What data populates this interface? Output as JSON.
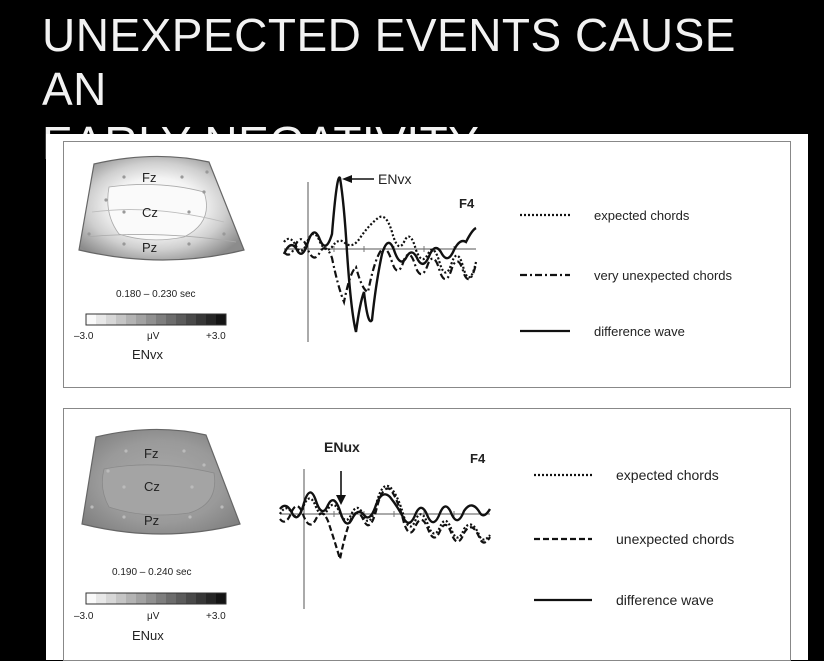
{
  "slide": {
    "title_line1": "UNEXPECTED EVENTS CAUSE AN",
    "title_line2": "EARLY NEGATIVITY…"
  },
  "panels": [
    {
      "component": "ENvx",
      "channel": "F4",
      "electrodes": [
        "Fz",
        "Cz",
        "Pz"
      ],
      "time_window": "0.180 – 0.230 sec",
      "scale_min": "–3.0",
      "scale_unit": "μV",
      "scale_max": "+3.0",
      "peak_label": "ENvx",
      "legend": [
        {
          "label": "expected chords",
          "style": "dotted"
        },
        {
          "label": "very unexpected chords",
          "style": "dashdot"
        },
        {
          "label": "difference wave",
          "style": "solid"
        }
      ]
    },
    {
      "component": "ENux",
      "channel": "F4",
      "electrodes": [
        "Fz",
        "Cz",
        "Pz"
      ],
      "time_window": "0.190 – 0.240 sec",
      "scale_min": "–3.0",
      "scale_unit": "μV",
      "scale_max": "+3.0",
      "peak_label": "ENux",
      "legend": [
        {
          "label": "expected chords",
          "style": "dotted"
        },
        {
          "label": "unexpected chords",
          "style": "dashed"
        },
        {
          "label": "difference wave",
          "style": "solid"
        }
      ]
    }
  ]
}
